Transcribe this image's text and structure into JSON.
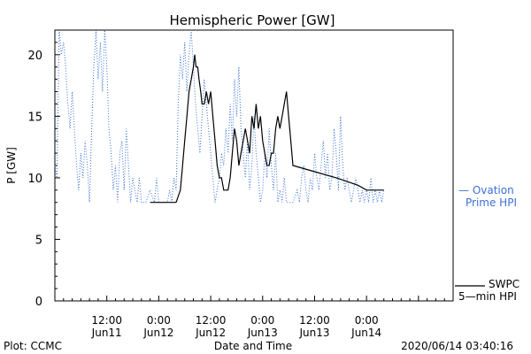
{
  "chart_data": {
    "type": "line",
    "title": "Hemispheric Power [GW]",
    "xlabel": "Date and Time",
    "ylabel": "P [GW]",
    "ylim": [
      0,
      22
    ],
    "xlim_hours": [
      0,
      92
    ],
    "grid": false,
    "y_ticks": [
      0,
      5,
      10,
      15,
      20
    ],
    "x_ticks": [
      {
        "t": 12,
        "time": "12:00",
        "date": "Jun11"
      },
      {
        "t": 24,
        "time": "0:00",
        "date": "Jun12"
      },
      {
        "t": 36,
        "time": "12:00",
        "date": "Jun12"
      },
      {
        "t": 48,
        "time": "0:00",
        "date": "Jun13"
      },
      {
        "t": 60,
        "time": "12:00",
        "date": "Jun13"
      },
      {
        "t": 72,
        "time": "0:00",
        "date": "Jun14"
      }
    ],
    "series": [
      {
        "name": "SWPC 5-min HPI",
        "color": "#000000",
        "style": "solid",
        "points": [
          [
            22,
            8
          ],
          [
            23,
            8
          ],
          [
            24,
            8
          ],
          [
            25,
            8
          ],
          [
            27,
            8
          ],
          [
            28,
            8
          ],
          [
            29,
            9
          ],
          [
            29.5,
            11
          ],
          [
            30,
            13
          ],
          [
            30.5,
            15
          ],
          [
            31,
            17
          ],
          [
            31.5,
            18
          ],
          [
            32,
            19
          ],
          [
            32.3,
            20
          ],
          [
            32.6,
            19
          ],
          [
            33,
            19
          ],
          [
            33.3,
            18
          ],
          [
            33.7,
            17
          ],
          [
            34,
            16
          ],
          [
            34.5,
            16
          ],
          [
            35,
            17
          ],
          [
            35.5,
            16
          ],
          [
            36,
            17
          ],
          [
            36.5,
            15
          ],
          [
            37,
            13
          ],
          [
            37.5,
            11
          ],
          [
            38,
            10
          ],
          [
            38.5,
            10
          ],
          [
            39,
            9
          ],
          [
            39.5,
            9
          ],
          [
            40,
            9
          ],
          [
            40.5,
            10
          ],
          [
            41,
            12
          ],
          [
            41.5,
            14
          ],
          [
            42,
            13
          ],
          [
            42.5,
            11
          ],
          [
            43,
            12
          ],
          [
            43.5,
            13
          ],
          [
            44,
            14
          ],
          [
            44.5,
            13
          ],
          [
            45,
            12
          ],
          [
            45.5,
            15
          ],
          [
            46,
            14
          ],
          [
            46.5,
            16
          ],
          [
            47,
            14
          ],
          [
            47.5,
            15
          ],
          [
            48,
            13
          ],
          [
            48.5,
            12
          ],
          [
            49,
            11
          ],
          [
            49.5,
            11
          ],
          [
            50,
            12
          ],
          [
            50.5,
            12
          ],
          [
            51,
            14
          ],
          [
            51.5,
            15
          ],
          [
            52,
            14
          ],
          [
            52.5,
            15
          ],
          [
            53,
            16
          ],
          [
            53.5,
            17
          ],
          [
            54,
            15
          ],
          [
            54.5,
            13
          ],
          [
            55,
            11
          ],
          [
            60,
            10.5
          ],
          [
            65,
            10
          ],
          [
            70,
            9.4
          ],
          [
            72,
            9
          ],
          [
            75,
            9
          ],
          [
            76,
            9
          ]
        ]
      },
      {
        "name": "Ovation Prime HPI",
        "color": "#3a6fd8",
        "style": "dotted",
        "points": [
          [
            0,
            11
          ],
          [
            0.5,
            10
          ],
          [
            1,
            22
          ],
          [
            1.5,
            20
          ],
          [
            2,
            21
          ],
          [
            2.5,
            19
          ],
          [
            3,
            16
          ],
          [
            3.5,
            14
          ],
          [
            4,
            17
          ],
          [
            4.5,
            14
          ],
          [
            5,
            11
          ],
          [
            5.5,
            9
          ],
          [
            6,
            12
          ],
          [
            6.5,
            10
          ],
          [
            7,
            13
          ],
          [
            7.5,
            11
          ],
          [
            8,
            8
          ],
          [
            8.5,
            14
          ],
          [
            9,
            19
          ],
          [
            9.5,
            22
          ],
          [
            10,
            18
          ],
          [
            10.5,
            21
          ],
          [
            11,
            17
          ],
          [
            11.5,
            22
          ],
          [
            12,
            19
          ],
          [
            12.5,
            14
          ],
          [
            13,
            12
          ],
          [
            13.5,
            9
          ],
          [
            14,
            11
          ],
          [
            14.5,
            8
          ],
          [
            15,
            12
          ],
          [
            15.5,
            13
          ],
          [
            16,
            9
          ],
          [
            16.5,
            14
          ],
          [
            17,
            11
          ],
          [
            17.5,
            8
          ],
          [
            18,
            10
          ],
          [
            18.5,
            9
          ],
          [
            19,
            8
          ],
          [
            19.5,
            10
          ],
          [
            20,
            8
          ],
          [
            21,
            8
          ],
          [
            22,
            9
          ],
          [
            23,
            8
          ],
          [
            23.5,
            10
          ],
          [
            24,
            8
          ],
          [
            25,
            8
          ],
          [
            26,
            8
          ],
          [
            26.5,
            9
          ],
          [
            27,
            8
          ],
          [
            27.5,
            10
          ],
          [
            28,
            9
          ],
          [
            28.5,
            16
          ],
          [
            29,
            20
          ],
          [
            29.5,
            18
          ],
          [
            30,
            21
          ],
          [
            30.5,
            17
          ],
          [
            31,
            20
          ],
          [
            31.5,
            22
          ],
          [
            32,
            19
          ],
          [
            32.5,
            16
          ],
          [
            33,
            14
          ],
          [
            33.5,
            12
          ],
          [
            34,
            15
          ],
          [
            34.5,
            18
          ],
          [
            35,
            16
          ],
          [
            35.5,
            14
          ],
          [
            36,
            12
          ],
          [
            36.5,
            10
          ],
          [
            37,
            8
          ],
          [
            37.5,
            9
          ],
          [
            38,
            10
          ],
          [
            38.5,
            12
          ],
          [
            39,
            11
          ],
          [
            39.5,
            14
          ],
          [
            40,
            12
          ],
          [
            40.5,
            16
          ],
          [
            41,
            13
          ],
          [
            41.5,
            18
          ],
          [
            42,
            15
          ],
          [
            42.5,
            19
          ],
          [
            43,
            14
          ],
          [
            43.5,
            12
          ],
          [
            44,
            10
          ],
          [
            44.5,
            13
          ],
          [
            45,
            9
          ],
          [
            45.5,
            11
          ],
          [
            46,
            15
          ],
          [
            46.5,
            12
          ],
          [
            47,
            10
          ],
          [
            47.5,
            8
          ],
          [
            48,
            9
          ],
          [
            48.5,
            12
          ],
          [
            49,
            10
          ],
          [
            49.5,
            14
          ],
          [
            50,
            11
          ],
          [
            50.5,
            9
          ],
          [
            51,
            12
          ],
          [
            51.5,
            8
          ],
          [
            52,
            9
          ],
          [
            52.5,
            8
          ],
          [
            53,
            10
          ],
          [
            53.5,
            8
          ],
          [
            54,
            8
          ],
          [
            55,
            8
          ],
          [
            56,
            9
          ],
          [
            56.5,
            8
          ],
          [
            57,
            10
          ],
          [
            57.5,
            11
          ],
          [
            58,
            9
          ],
          [
            58.5,
            8
          ],
          [
            59,
            10
          ],
          [
            59.5,
            9
          ],
          [
            60,
            12
          ],
          [
            60.5,
            10
          ],
          [
            61,
            9
          ],
          [
            61.5,
            11
          ],
          [
            62,
            13
          ],
          [
            62.5,
            10
          ],
          [
            63,
            12
          ],
          [
            63.5,
            9
          ],
          [
            64,
            10
          ],
          [
            64.5,
            14
          ],
          [
            65,
            12
          ],
          [
            65.5,
            9
          ],
          [
            66,
            15
          ],
          [
            66.5,
            11
          ],
          [
            67,
            9
          ],
          [
            67.5,
            10
          ],
          [
            68,
            9
          ],
          [
            68.5,
            8
          ],
          [
            69,
            9
          ],
          [
            69.5,
            10
          ],
          [
            70,
            9
          ],
          [
            70.5,
            8
          ],
          [
            71,
            9
          ],
          [
            71.5,
            8
          ],
          [
            72,
            9
          ],
          [
            72.5,
            8
          ],
          [
            73,
            10
          ],
          [
            73.5,
            8
          ],
          [
            74,
            9
          ],
          [
            74.5,
            8
          ],
          [
            75,
            9
          ],
          [
            75.5,
            8
          ],
          [
            76,
            9
          ]
        ]
      }
    ],
    "legend": {
      "placement": "right",
      "ovation_line1": "— Ovation",
      "ovation_line2": "Prime HPI",
      "swpc_line1": "SWPC",
      "swpc_line2": "5—min HPI"
    }
  },
  "footer": {
    "left": "Plot: CCMC",
    "center": "Date and Time",
    "right": "2020/06/14 03:40:16"
  }
}
